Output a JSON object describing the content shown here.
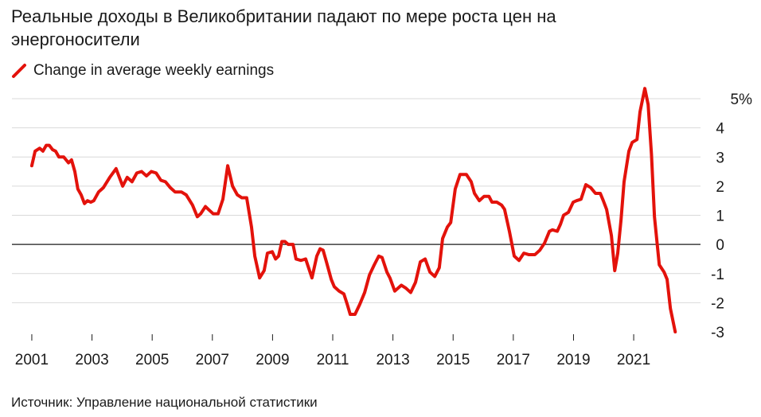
{
  "chart_data": {
    "type": "line",
    "title": "Реальные доходы в Великобритании падают по мере роста цен на энергоносители",
    "source": "Источник: Управление национальной статистики",
    "series": [
      {
        "name": "Change in average weekly earnings",
        "color": "#e3120b",
        "x": [
          2001.0,
          2001.11,
          2001.26,
          2001.37,
          2001.48,
          2001.58,
          2001.69,
          2001.79,
          2001.9,
          2002.06,
          2002.22,
          2002.32,
          2002.43,
          2002.53,
          2002.64,
          2002.75,
          2002.85,
          2002.96,
          2003.06,
          2003.22,
          2003.38,
          2003.59,
          2003.8,
          2004.02,
          2004.17,
          2004.33,
          2004.49,
          2004.65,
          2004.81,
          2004.97,
          2005.13,
          2005.29,
          2005.44,
          2005.6,
          2005.76,
          2005.97,
          2006.13,
          2006.34,
          2006.5,
          2006.61,
          2006.77,
          2006.87,
          2007.03,
          2007.19,
          2007.35,
          2007.51,
          2007.67,
          2007.83,
          2007.98,
          2008.14,
          2008.3,
          2008.41,
          2008.57,
          2008.72,
          2008.83,
          2008.99,
          2009.1,
          2009.2,
          2009.31,
          2009.41,
          2009.52,
          2009.68,
          2009.78,
          2009.94,
          2010.1,
          2010.31,
          2010.47,
          2010.58,
          2010.68,
          2010.79,
          2010.95,
          2011.05,
          2011.21,
          2011.37,
          2011.48,
          2011.58,
          2011.74,
          2011.9,
          2012.06,
          2012.22,
          2012.38,
          2012.53,
          2012.64,
          2012.8,
          2012.9,
          2013.06,
          2013.28,
          2013.43,
          2013.59,
          2013.75,
          2013.91,
          2014.07,
          2014.23,
          2014.39,
          2014.54,
          2014.65,
          2014.81,
          2014.92,
          2015.07,
          2015.23,
          2015.44,
          2015.6,
          2015.71,
          2015.87,
          2016.03,
          2016.19,
          2016.29,
          2016.45,
          2016.61,
          2016.71,
          2016.87,
          2017.03,
          2017.19,
          2017.35,
          2017.51,
          2017.72,
          2017.88,
          2018.04,
          2018.2,
          2018.3,
          2018.46,
          2018.57,
          2018.67,
          2018.83,
          2018.99,
          2019.1,
          2019.25,
          2019.41,
          2019.57,
          2019.73,
          2019.89,
          2019.99,
          2020.1,
          2020.26,
          2020.37,
          2020.47,
          2020.58,
          2020.68,
          2020.84,
          2020.95,
          2021.11,
          2021.21,
          2021.37,
          2021.48,
          2021.59,
          2021.69,
          2021.85,
          2022.01,
          2022.11,
          2022.22,
          2022.38
        ],
        "values": [
          2.7,
          3.2,
          3.3,
          3.2,
          3.4,
          3.4,
          3.25,
          3.2,
          3.0,
          3.0,
          2.8,
          2.9,
          2.5,
          1.9,
          1.7,
          1.4,
          1.5,
          1.45,
          1.5,
          1.8,
          1.95,
          2.3,
          2.6,
          2.0,
          2.3,
          2.15,
          2.45,
          2.5,
          2.35,
          2.5,
          2.45,
          2.2,
          2.15,
          1.95,
          1.8,
          1.8,
          1.7,
          1.35,
          0.95,
          1.05,
          1.3,
          1.2,
          1.05,
          1.05,
          1.55,
          2.7,
          2.0,
          1.7,
          1.6,
          1.6,
          0.6,
          -0.4,
          -1.15,
          -0.9,
          -0.3,
          -0.25,
          -0.5,
          -0.4,
          0.1,
          0.1,
          0,
          0,
          -0.5,
          -0.55,
          -0.5,
          -1.15,
          -0.4,
          -0.15,
          -0.2,
          -0.6,
          -1.2,
          -1.45,
          -1.6,
          -1.7,
          -2.05,
          -2.4,
          -2.4,
          -2.05,
          -1.65,
          -1.05,
          -0.7,
          -0.4,
          -0.45,
          -0.95,
          -1.15,
          -1.6,
          -1.4,
          -1.5,
          -1.65,
          -1.3,
          -0.6,
          -0.5,
          -0.95,
          -1.1,
          -0.8,
          0.2,
          0.6,
          0.75,
          1.9,
          2.4,
          2.4,
          2.15,
          1.75,
          1.5,
          1.65,
          1.65,
          1.45,
          1.45,
          1.35,
          1.2,
          0.45,
          -0.4,
          -0.55,
          -0.3,
          -0.35,
          -0.35,
          -0.2,
          0.05,
          0.45,
          0.5,
          0.45,
          0.7,
          1.0,
          1.1,
          1.45,
          1.5,
          1.55,
          2.05,
          1.95,
          1.75,
          1.75,
          1.5,
          1.2,
          0.3,
          -0.9,
          -0.3,
          0.85,
          2.15,
          3.2,
          3.5,
          3.6,
          4.55,
          5.35,
          4.8,
          3.1,
          0.95,
          -0.7,
          -0.95,
          -1.2,
          -2.2,
          -3.0
        ]
      }
    ],
    "xlim": [
      2000.34,
      2023.22
    ],
    "xticks": [
      2001,
      2003,
      2005,
      2007,
      2009,
      2011,
      2013,
      2015,
      2017,
      2019,
      2021
    ],
    "ylim": [
      -3,
      5
    ],
    "yticks": [
      -3,
      -2,
      -1,
      0,
      1,
      2,
      3,
      4,
      {
        "value": 5,
        "label": "5%"
      }
    ],
    "grid": true
  }
}
